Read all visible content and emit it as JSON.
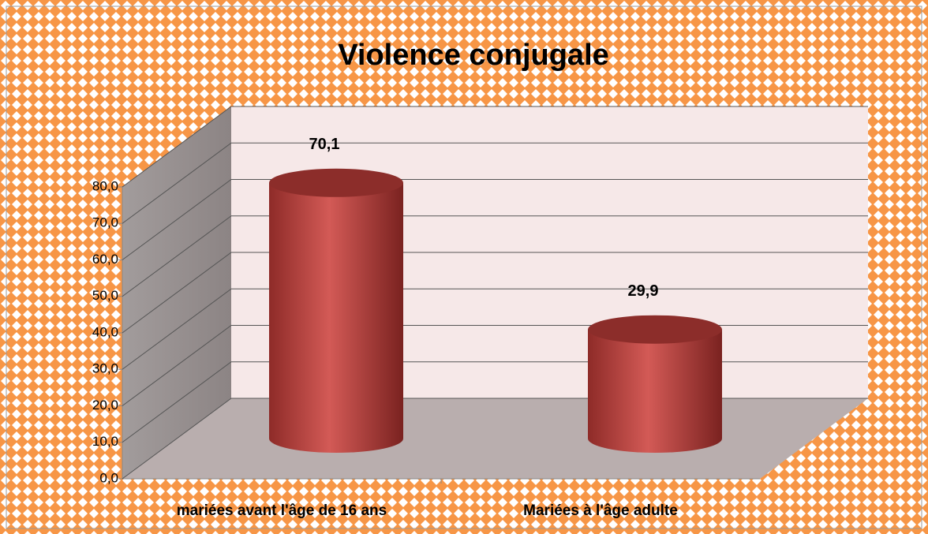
{
  "chart_data": {
    "type": "bar3d-cylinder",
    "title": "Violence conjugale",
    "categories": [
      "mariées avant l'âge de 16 ans",
      "Mariées à l'âge adulte"
    ],
    "values": [
      70.1,
      29.9
    ],
    "value_labels": [
      "70,1",
      "29,9"
    ],
    "color": "#c0504d",
    "ylim": [
      0,
      80
    ],
    "yticks": [
      {
        "value": 0,
        "label": "0,0"
      },
      {
        "value": 10,
        "label": "10,0"
      },
      {
        "value": 20,
        "label": "20,0"
      },
      {
        "value": 30,
        "label": "30,0"
      },
      {
        "value": 40,
        "label": "40,0"
      },
      {
        "value": 50,
        "label": "50,0"
      },
      {
        "value": 60,
        "label": "60,0"
      },
      {
        "value": 70,
        "label": "70,0"
      },
      {
        "value": 80,
        "label": "80,0"
      }
    ],
    "grid": true
  }
}
